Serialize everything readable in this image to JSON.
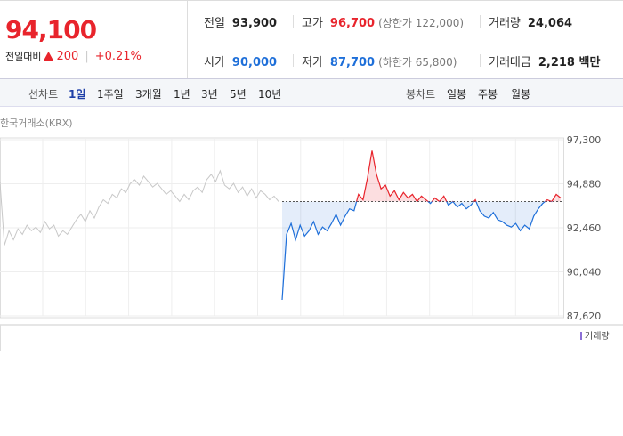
{
  "header": {
    "price": "94,100",
    "change_label": "전일대비",
    "change": "200",
    "change_pct": "+0.21%",
    "stats": [
      [
        {
          "label": "전일",
          "value": "93,900"
        },
        {
          "label": "고가",
          "value": "96,700",
          "note": "(상한가 122,000)"
        },
        {
          "label": "거래량",
          "value": "24,064"
        }
      ],
      [
        {
          "label": "시가",
          "value": "90,000"
        },
        {
          "label": "저가",
          "value": "87,700",
          "note": "(하한가 65,800)"
        },
        {
          "label": "거래대금",
          "value": "2,218 백만"
        }
      ]
    ]
  },
  "tabs": {
    "line_label": "선차트",
    "line_items": [
      "1일",
      "1주일",
      "3개월",
      "1년",
      "3년",
      "5년",
      "10년"
    ],
    "candle_label": "봉차트",
    "candle_items": [
      "일봉",
      "주봉",
      "월봉"
    ]
  },
  "chart_data": {
    "type": "line",
    "source": "한국거래소(KRX)",
    "ylim": [
      87620,
      97300
    ],
    "yticks": [
      {
        "value": 97300,
        "label": "97,300"
      },
      {
        "value": 94880,
        "label": "94,880"
      },
      {
        "value": 92460,
        "label": "92,460"
      },
      {
        "value": 90040,
        "label": "90,040"
      },
      {
        "value": 87620,
        "label": "87,620"
      }
    ],
    "reference_line": 93900,
    "up_color": "#e8242c",
    "grid": true,
    "volume_label": "거래량",
    "volume_color": "#8b6fd6",
    "series": [
      {
        "color": "#c8c8c8",
        "values": [
          94950,
          91500,
          92300,
          91800,
          92400,
          92100,
          92600,
          92300,
          92500,
          92200,
          92800,
          92400,
          92600,
          92000,
          92300,
          92100,
          92500,
          92900,
          93200,
          92800,
          93400,
          93000,
          93600,
          94000,
          93800,
          94300,
          94100,
          94600,
          94400,
          94900,
          95100,
          94800,
          95300,
          95000,
          94700,
          94900,
          94600,
          94300,
          94500,
          94200,
          93900,
          94300,
          94000,
          94500,
          94700,
          94400,
          95100,
          95400,
          95000,
          95600,
          94800,
          94600,
          94900,
          94400,
          94700,
          94200,
          94600,
          94100,
          94500,
          94300,
          94000,
          94200,
          93900
        ]
      },
      {
        "color": "#1e6fd9",
        "values": [
          88500,
          92100,
          92700,
          91800,
          92600,
          92000,
          92300,
          92800,
          92100,
          92500,
          92300,
          92700,
          93200,
          92600,
          93100,
          93500,
          93400,
          94300,
          94000,
          95200,
          96700,
          95400,
          94600,
          94800,
          94200,
          94500,
          94000,
          94400,
          94100,
          94300,
          93900,
          94200,
          94000,
          93800,
          94100,
          93900,
          94200,
          93700,
          93900,
          93600,
          93800,
          93500,
          93700,
          94000,
          93400,
          93100,
          93000,
          93300,
          92900,
          92800,
          92600,
          92500,
          92700,
          92300,
          92600,
          92400,
          93100,
          93500,
          93800,
          94000,
          93900,
          94300,
          94100
        ]
      }
    ]
  }
}
